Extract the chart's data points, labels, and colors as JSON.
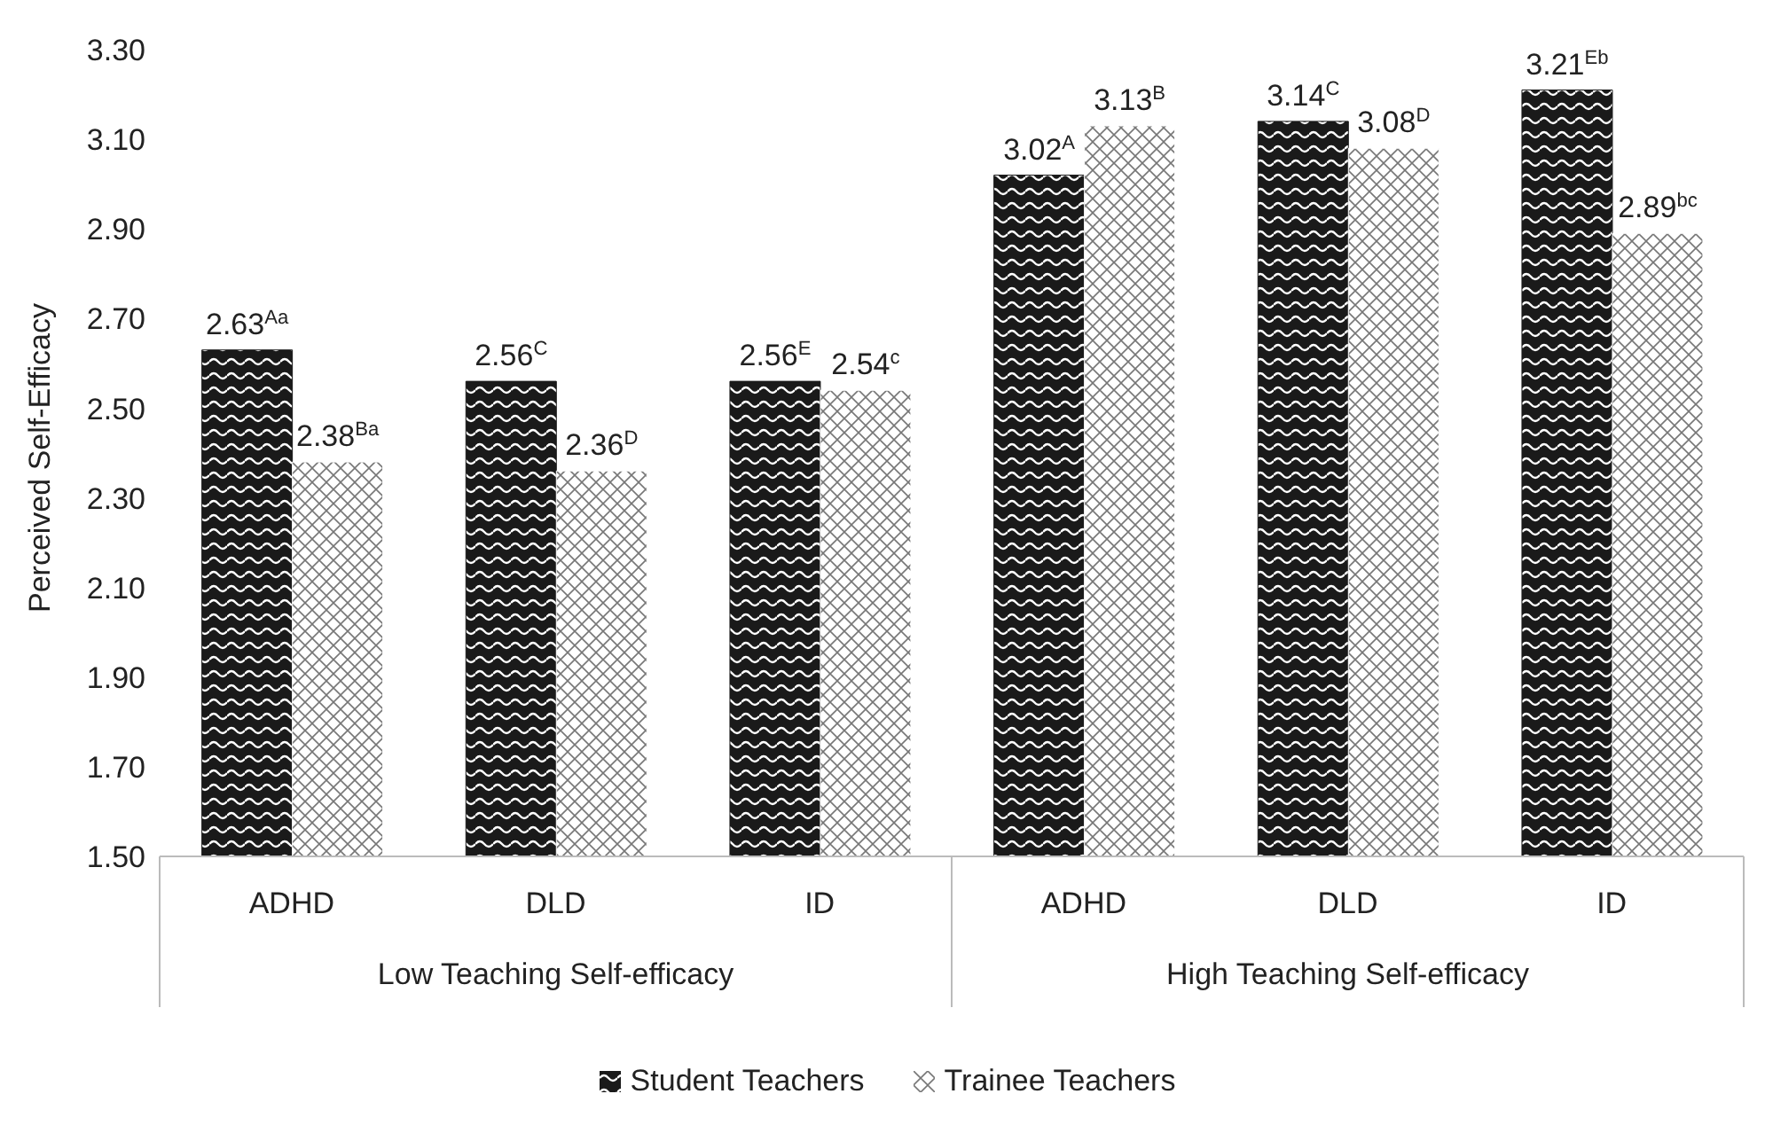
{
  "chart_data": {
    "type": "bar",
    "ylabel": "Perceived Self-Efficacy",
    "categories": [
      "ADHD",
      "DLD",
      "ID",
      "ADHD",
      "DLD",
      "ID"
    ],
    "annotations": [
      "Low Teaching Self-efficacy",
      "High Teaching Self-efficacy"
    ],
    "series": [
      {
        "name": "Student Teachers",
        "color": "#1a1a1a",
        "values": [
          2.63,
          2.56,
          2.56,
          3.02,
          3.14,
          3.21
        ],
        "value_labels": [
          "2.63$^{Aa}$",
          "2.56$^{C}$",
          "2.56$^{E}$",
          "3.02$^{A}$",
          "3.14$^{C}$",
          "3.21$^{Eb}$"
        ]
      },
      {
        "name": "Trainee Teachers",
        "color": "#ffffff",
        "values": [
          2.38,
          2.36,
          2.54,
          3.13,
          3.08,
          2.89
        ],
        "value_labels": [
          "2.38$^{Ba}$",
          "2.36$^{D}$",
          "2.54$^{c}$",
          "3.13$^{B}$",
          "3.08$^{D}$",
          "2.89$^{bc}$"
        ]
      }
    ],
    "ylim": [
      1.5,
      3.3
    ],
    "yticks": [
      {
        "value": 1.5,
        "label": "1.50"
      },
      {
        "value": 1.7,
        "label": "1.70"
      },
      {
        "value": 1.9,
        "label": "1.90"
      },
      {
        "value": 2.1,
        "label": "2.10"
      },
      {
        "value": 2.3,
        "label": "2.30"
      },
      {
        "value": 2.5,
        "label": "2.50"
      },
      {
        "value": 2.7,
        "label": "2.70"
      },
      {
        "value": 2.9,
        "label": "2.90"
      },
      {
        "value": 3.1,
        "label": "3.10"
      },
      {
        "value": 3.3,
        "label": "3.30"
      }
    ],
    "grid": false,
    "legend": "bottom"
  }
}
